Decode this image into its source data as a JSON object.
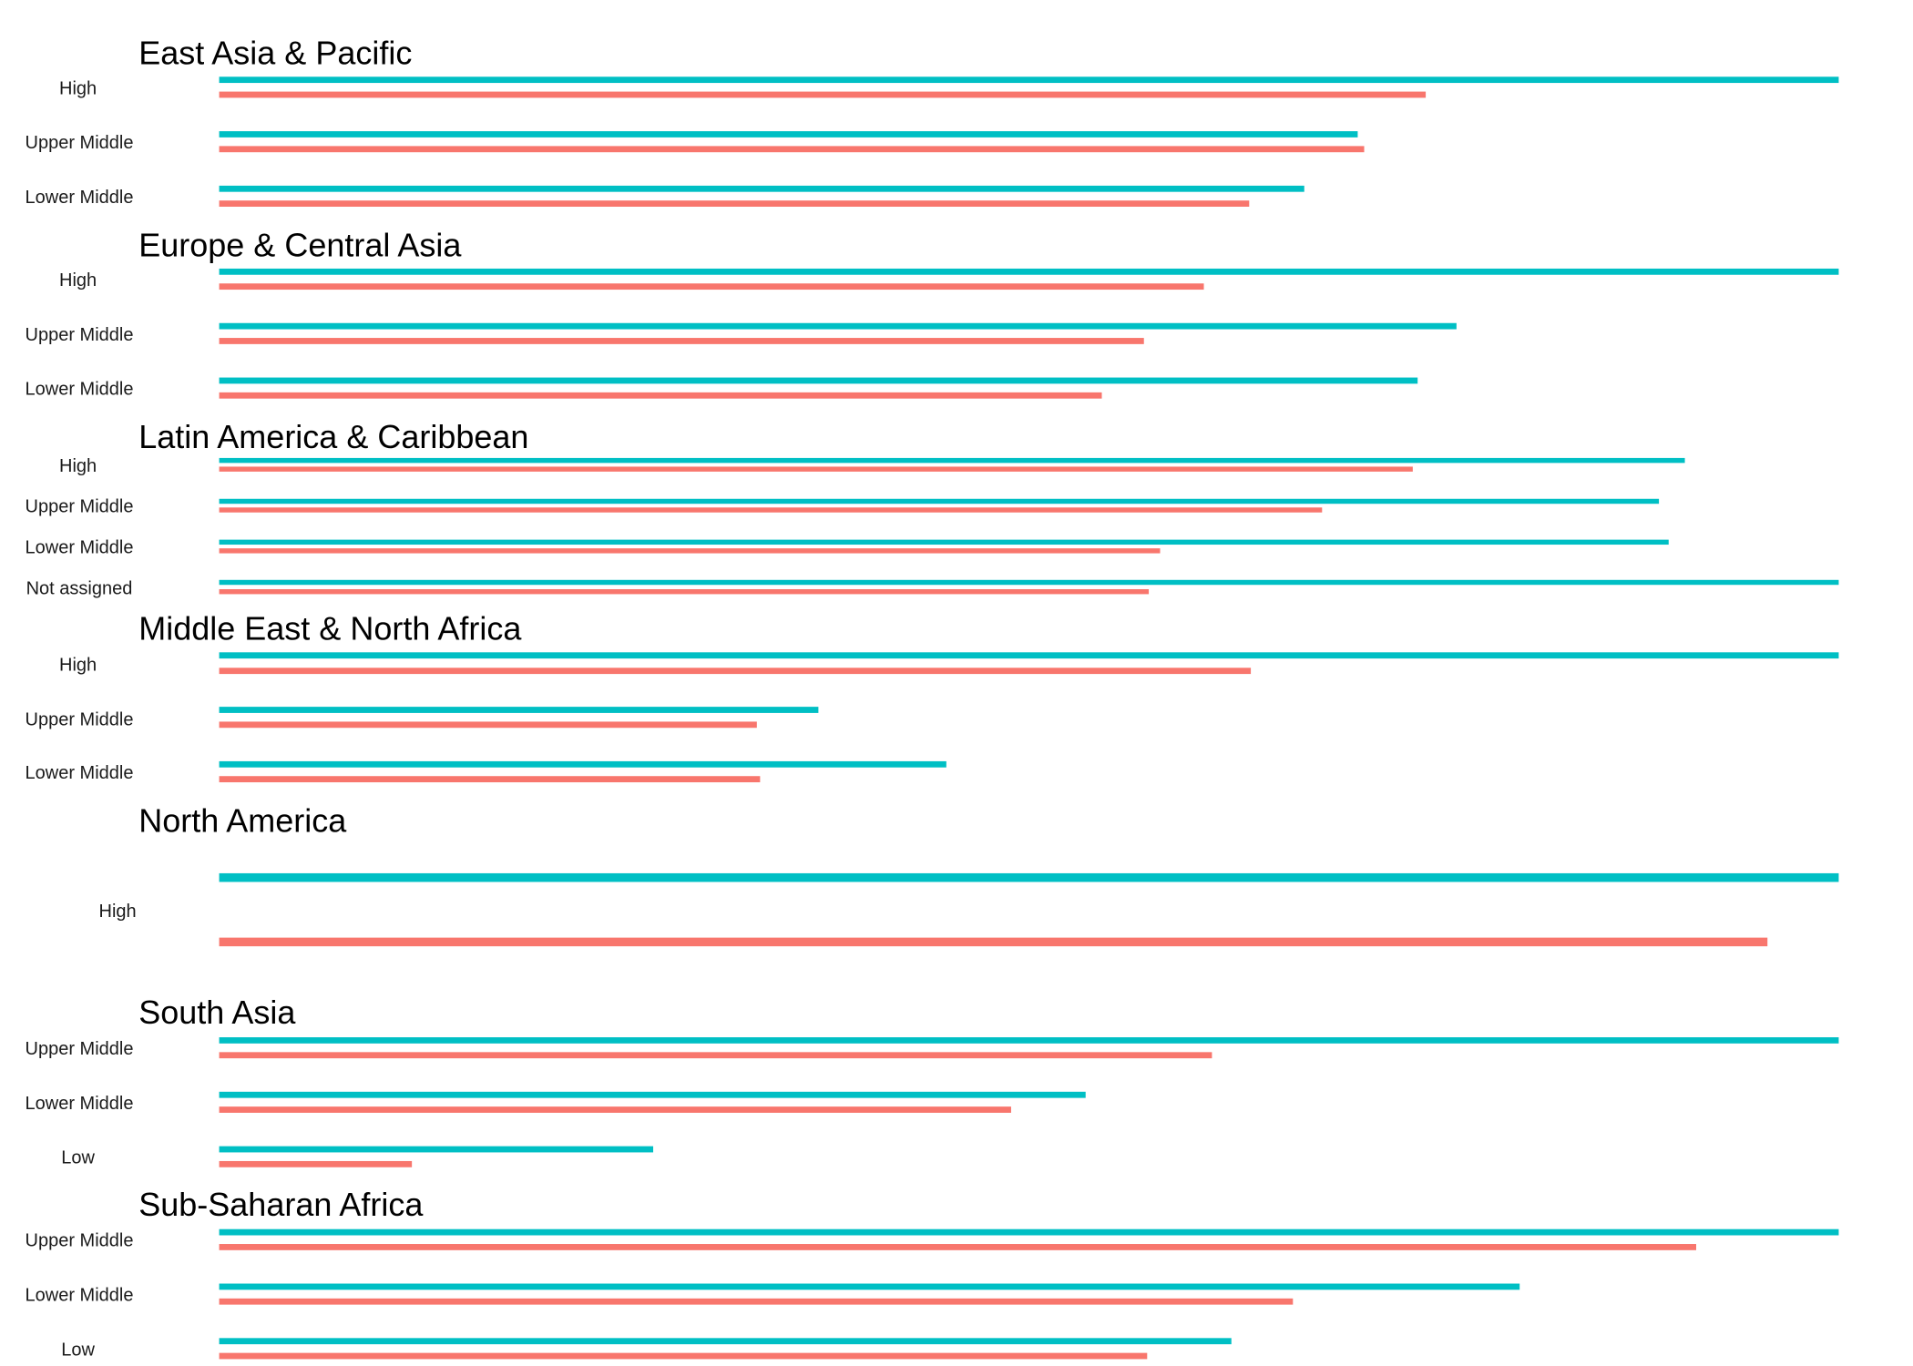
{
  "chart_data": {
    "type": "bar",
    "orientation": "horizontal",
    "colors": {
      "series_a": "#00BFC4",
      "series_b": "#F8766D"
    },
    "axes_shown": false,
    "grid": false,
    "legend": "none",
    "xlim": [
      0,
      1
    ],
    "series_order": [
      "series_a",
      "series_b"
    ],
    "panels": [
      {
        "title": "East Asia & Pacific",
        "rows": [
          {
            "label": "High",
            "values": [
              1.0,
              0.745
            ]
          },
          {
            "label": "Upper Middle",
            "values": [
              0.703,
              0.707
            ]
          },
          {
            "label": "Lower Middle",
            "values": [
              0.67,
              0.636
            ]
          }
        ]
      },
      {
        "title": "Europe & Central Asia",
        "rows": [
          {
            "label": "High",
            "values": [
              1.0,
              0.608
            ]
          },
          {
            "label": "Upper Middle",
            "values": [
              0.764,
              0.571
            ]
          },
          {
            "label": "Lower Middle",
            "values": [
              0.74,
              0.545
            ]
          }
        ]
      },
      {
        "title": "Latin America & Caribbean",
        "rows": [
          {
            "label": "High",
            "values": [
              0.905,
              0.737
            ]
          },
          {
            "label": "Upper Middle",
            "values": [
              0.889,
              0.681
            ]
          },
          {
            "label": "Lower Middle",
            "values": [
              0.895,
              0.581
            ]
          },
          {
            "label": "Not assigned",
            "values": [
              1.0,
              0.574
            ]
          }
        ]
      },
      {
        "title": "Middle East & North Africa",
        "rows": [
          {
            "label": "High",
            "values": [
              1.0,
              0.637
            ]
          },
          {
            "label": "Upper Middle",
            "values": [
              0.37,
              0.332
            ]
          },
          {
            "label": "Lower Middle",
            "values": [
              0.449,
              0.334
            ]
          }
        ]
      },
      {
        "title": "North America",
        "rows": [
          {
            "label": "High",
            "values": [
              1.0,
              0.956
            ]
          }
        ]
      },
      {
        "title": "South Asia",
        "rows": [
          {
            "label": "Upper Middle",
            "values": [
              1.0,
              0.613
            ]
          },
          {
            "label": "Lower Middle",
            "values": [
              0.535,
              0.489
            ]
          },
          {
            "label": "Low",
            "values": [
              0.268,
              0.119
            ]
          }
        ]
      },
      {
        "title": "Sub-Saharan Africa",
        "rows": [
          {
            "label": "Upper Middle",
            "values": [
              1.0,
              0.912
            ]
          },
          {
            "label": "Lower Middle",
            "values": [
              0.803,
              0.663
            ]
          },
          {
            "label": "Low",
            "values": [
              0.625,
              0.573
            ]
          }
        ]
      }
    ]
  }
}
